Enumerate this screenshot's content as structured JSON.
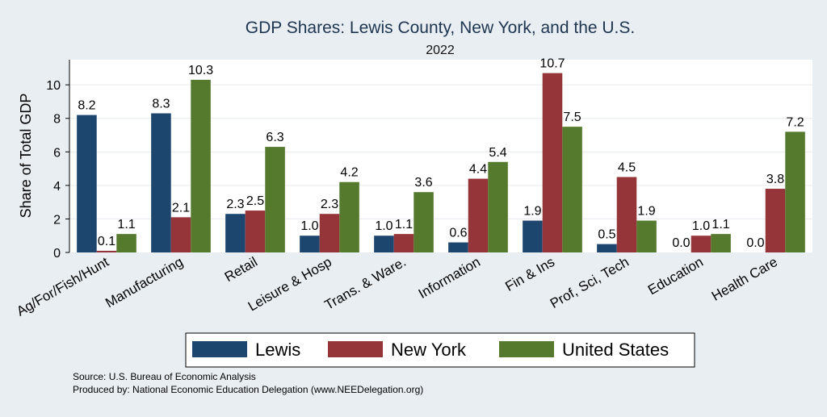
{
  "chart_data": {
    "type": "bar",
    "title": "GDP Shares: Lewis County, New York, and the U.S.",
    "subtitle": "2022",
    "xlabel": "",
    "ylabel": "Share of Total GDP",
    "ylim": [
      0,
      11.5
    ],
    "yticks": [
      0,
      2,
      4,
      6,
      8,
      10
    ],
    "grid": true,
    "legend_position": "bottom",
    "categories": [
      "Ag/For/Fish/Hunt",
      "Manufacturing",
      "Retail",
      "Leisure & Hosp",
      "Trans. & Ware.",
      "Information",
      "Fin & Ins",
      "Prof, Sci, Tech",
      "Education",
      "Health Care"
    ],
    "series": [
      {
        "name": "Lewis",
        "color": "#1c466e",
        "values": [
          8.2,
          8.3,
          2.3,
          1.0,
          1.0,
          0.6,
          1.9,
          0.5,
          0.0,
          0.0
        ],
        "labels": [
          "8.2",
          "8.3",
          "2.3",
          "1.0",
          "1.0",
          "0.6",
          "1.9",
          "0.5",
          "0.0",
          "0.0"
        ]
      },
      {
        "name": "New York",
        "color": "#953439",
        "values": [
          0.1,
          2.1,
          2.5,
          2.3,
          1.1,
          4.4,
          10.7,
          4.5,
          1.0,
          3.8
        ],
        "labels": [
          "0.1",
          "2.1",
          "2.5",
          "2.3",
          "1.1",
          "4.4",
          "10.7",
          "4.5",
          "1.0",
          "3.8"
        ]
      },
      {
        "name": "United States",
        "color": "#557a2e",
        "values": [
          1.1,
          10.3,
          6.3,
          4.2,
          3.6,
          5.4,
          7.5,
          1.9,
          1.1,
          7.2
        ],
        "labels": [
          "1.1",
          "10.3",
          "6.3",
          "4.2",
          "3.6",
          "5.4",
          "7.5",
          "1.9",
          "1.1",
          "7.2"
        ]
      }
    ],
    "notes": [
      "Source: U.S. Bureau of Economic Analysis",
      "Produced by: National Economic Education Delegation (www.NEEDelegation.org)"
    ]
  }
}
